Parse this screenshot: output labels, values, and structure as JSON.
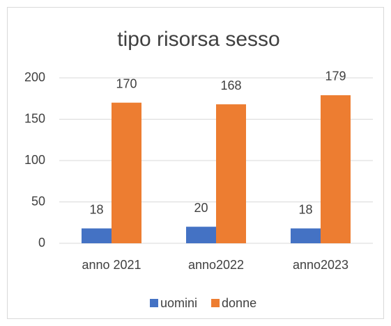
{
  "chart_data": {
    "type": "bar",
    "title": "tipo risorsa sesso",
    "categories": [
      "anno 2021",
      "anno2022",
      "anno2023"
    ],
    "series": [
      {
        "name": "uomini",
        "color": "#4472c4",
        "values": [
          18,
          20,
          18
        ]
      },
      {
        "name": "donne",
        "color": "#ed7d31",
        "values": [
          170,
          168,
          179
        ]
      }
    ],
    "ylim": [
      0,
      200
    ],
    "yticks": [
      0,
      50,
      100,
      150,
      200
    ],
    "grid": true,
    "legend": "bottom",
    "data_labels": true
  }
}
